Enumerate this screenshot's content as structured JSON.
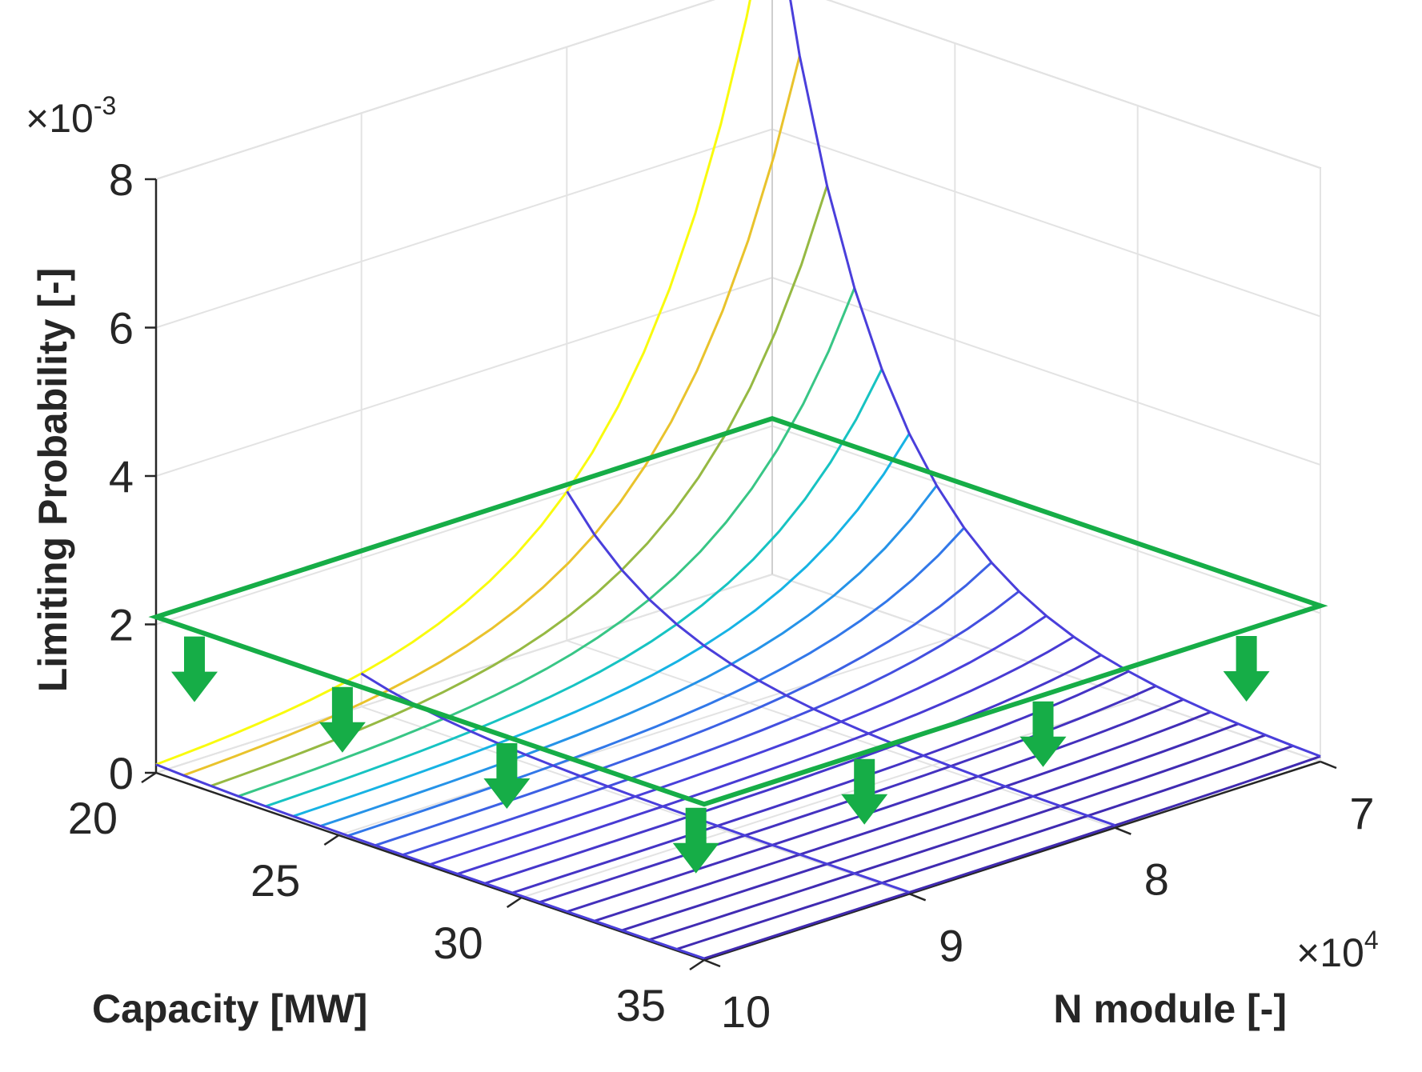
{
  "chart_data": {
    "type": "surface3d",
    "title": "",
    "xlabel": "Capacity [MW]",
    "ylabel": "N module [-]",
    "zlabel": "Limiting Probability [-]",
    "x_ticks": [
      20,
      25,
      30,
      35
    ],
    "x_tick_labels": [
      "20",
      "25",
      "30",
      "35"
    ],
    "y_ticks": [
      70000,
      80000,
      90000,
      100000
    ],
    "y_tick_labels": [
      "7",
      "8",
      "9",
      "10"
    ],
    "y_exponent_label": "×10",
    "y_exponent_power": "4",
    "z_ticks": [
      0,
      0.002,
      0.004,
      0.006,
      0.008
    ],
    "z_tick_labels": [
      "0",
      "2",
      "4",
      "6",
      "8"
    ],
    "z_exponent_label": "×10",
    "z_exponent_power": "-3",
    "xlim": [
      20,
      35
    ],
    "ylim": [
      70000,
      100000
    ],
    "zlim": [
      0,
      0.008
    ],
    "grid": true,
    "surface": {
      "description": "Mesh of limiting probability; peak at Capacity 20 MW, N module 70000",
      "peak_value": 0.0092,
      "capacity_values": [
        20,
        20.75,
        21.5,
        22.25,
        23,
        23.75,
        24.5,
        25.25,
        26,
        26.75,
        27.5,
        28.25,
        29,
        29.75,
        30.5,
        31.25,
        32,
        32.75,
        33.5,
        34.25,
        35
      ],
      "n_module_values": [
        70000,
        100000
      ],
      "colormap": "parula",
      "colormap_stops": [
        "#3E26A8",
        "#4A3FDB",
        "#2F7FEB",
        "#13BDE3",
        "#1CC9A0",
        "#7ABF4B",
        "#D8AC2F",
        "#F9D92A",
        "#F9FB0E"
      ]
    },
    "threshold_plane": {
      "value": 0.0021,
      "color": "#16AD47",
      "arrow_color": "#16AD47"
    },
    "arrow_count": 7
  }
}
